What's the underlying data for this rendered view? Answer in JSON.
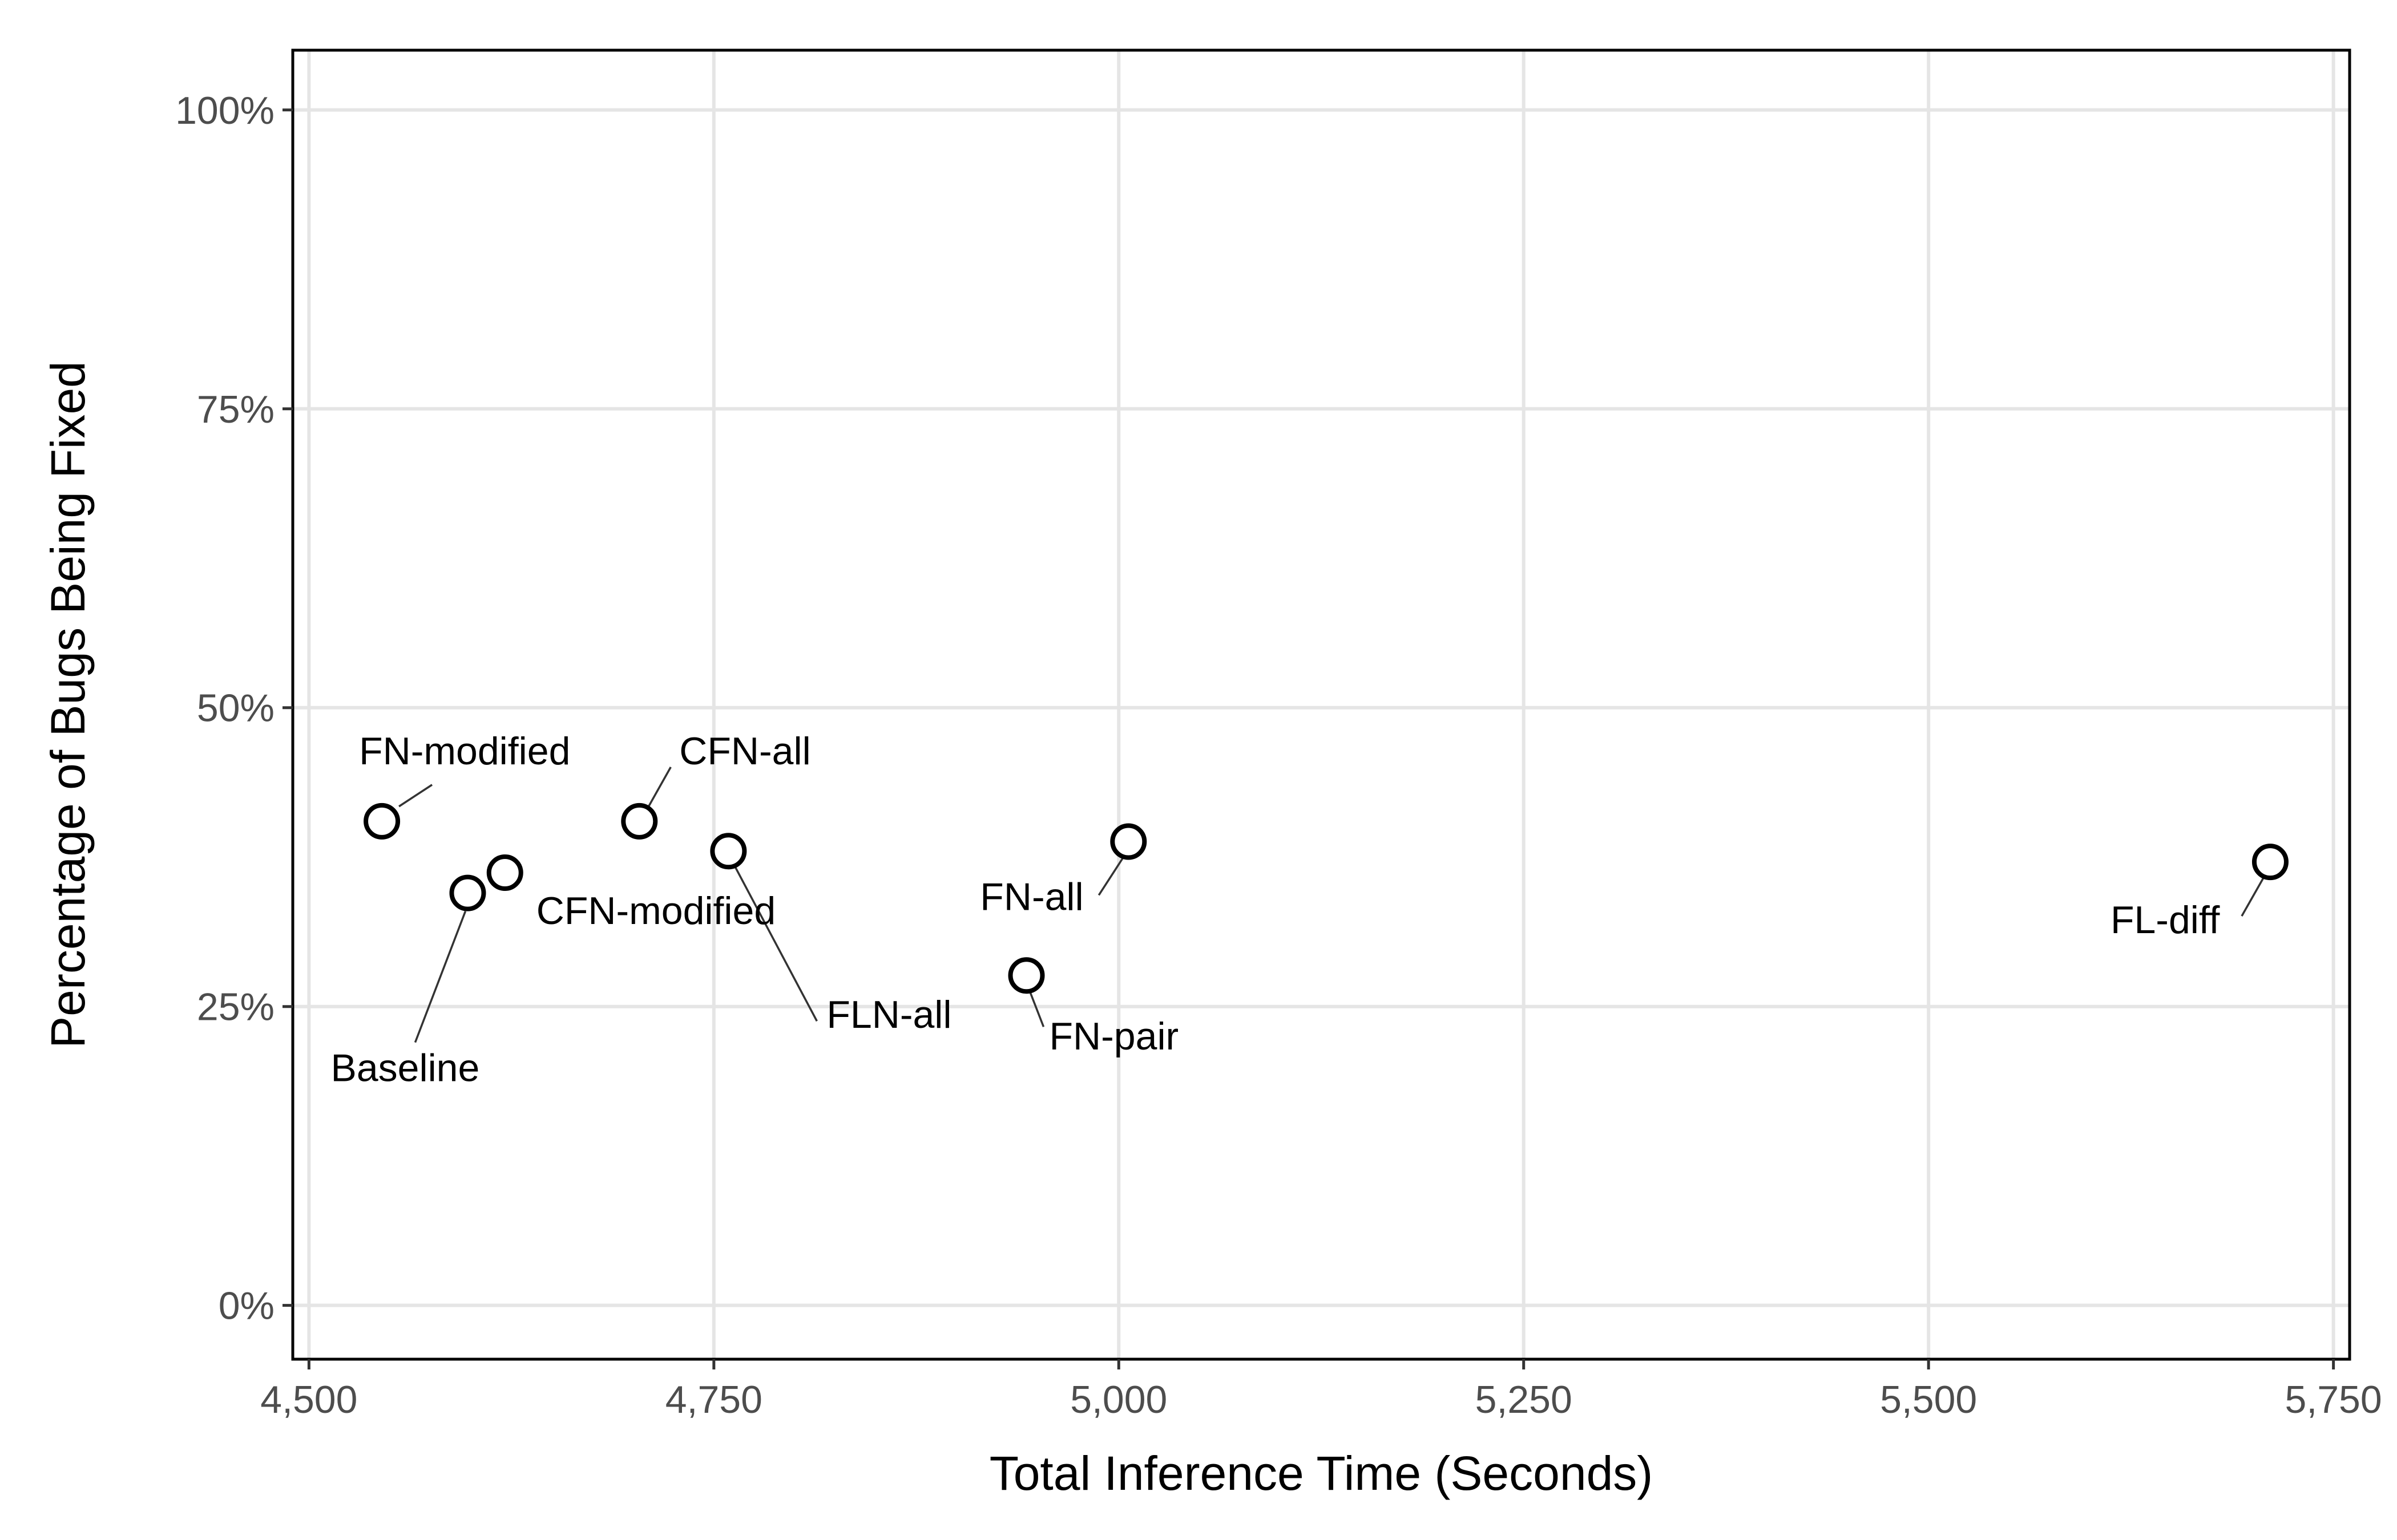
{
  "chart_data": {
    "type": "scatter",
    "title": "",
    "xlabel": "Total Inference Time (Seconds)",
    "ylabel": "Percentage of Bugs Being Fixed",
    "xlim": [
      4490,
      5760
    ],
    "ylim": [
      -4.5,
      105
    ],
    "x_ticks": [
      4500,
      4750,
      5000,
      5250,
      5500,
      5750
    ],
    "x_tick_labels": [
      "4,500",
      "4,750",
      "5,000",
      "5,250",
      "5,500",
      "5,750"
    ],
    "y_ticks": [
      0,
      25,
      50,
      75,
      100
    ],
    "y_tick_labels": [
      "0%",
      "25%",
      "50%",
      "75%",
      "100%"
    ],
    "grid": true,
    "legend": "none",
    "marker": "open-circle",
    "points": [
      {
        "label": "FN-modified",
        "x": 4545,
        "y": 40.5
      },
      {
        "label": "Baseline",
        "x": 4598,
        "y": 34.5
      },
      {
        "label": "CFN-modified",
        "x": 4621,
        "y": 36.2
      },
      {
        "label": "CFN-all",
        "x": 4704,
        "y": 40.5
      },
      {
        "label": "FLN-all",
        "x": 4759,
        "y": 38.0
      },
      {
        "label": "FN-pair",
        "x": 4943,
        "y": 27.6
      },
      {
        "label": "FN-all",
        "x": 5006,
        "y": 38.8
      },
      {
        "label": "FL-diff",
        "x": 5711,
        "y": 37.1
      }
    ]
  }
}
